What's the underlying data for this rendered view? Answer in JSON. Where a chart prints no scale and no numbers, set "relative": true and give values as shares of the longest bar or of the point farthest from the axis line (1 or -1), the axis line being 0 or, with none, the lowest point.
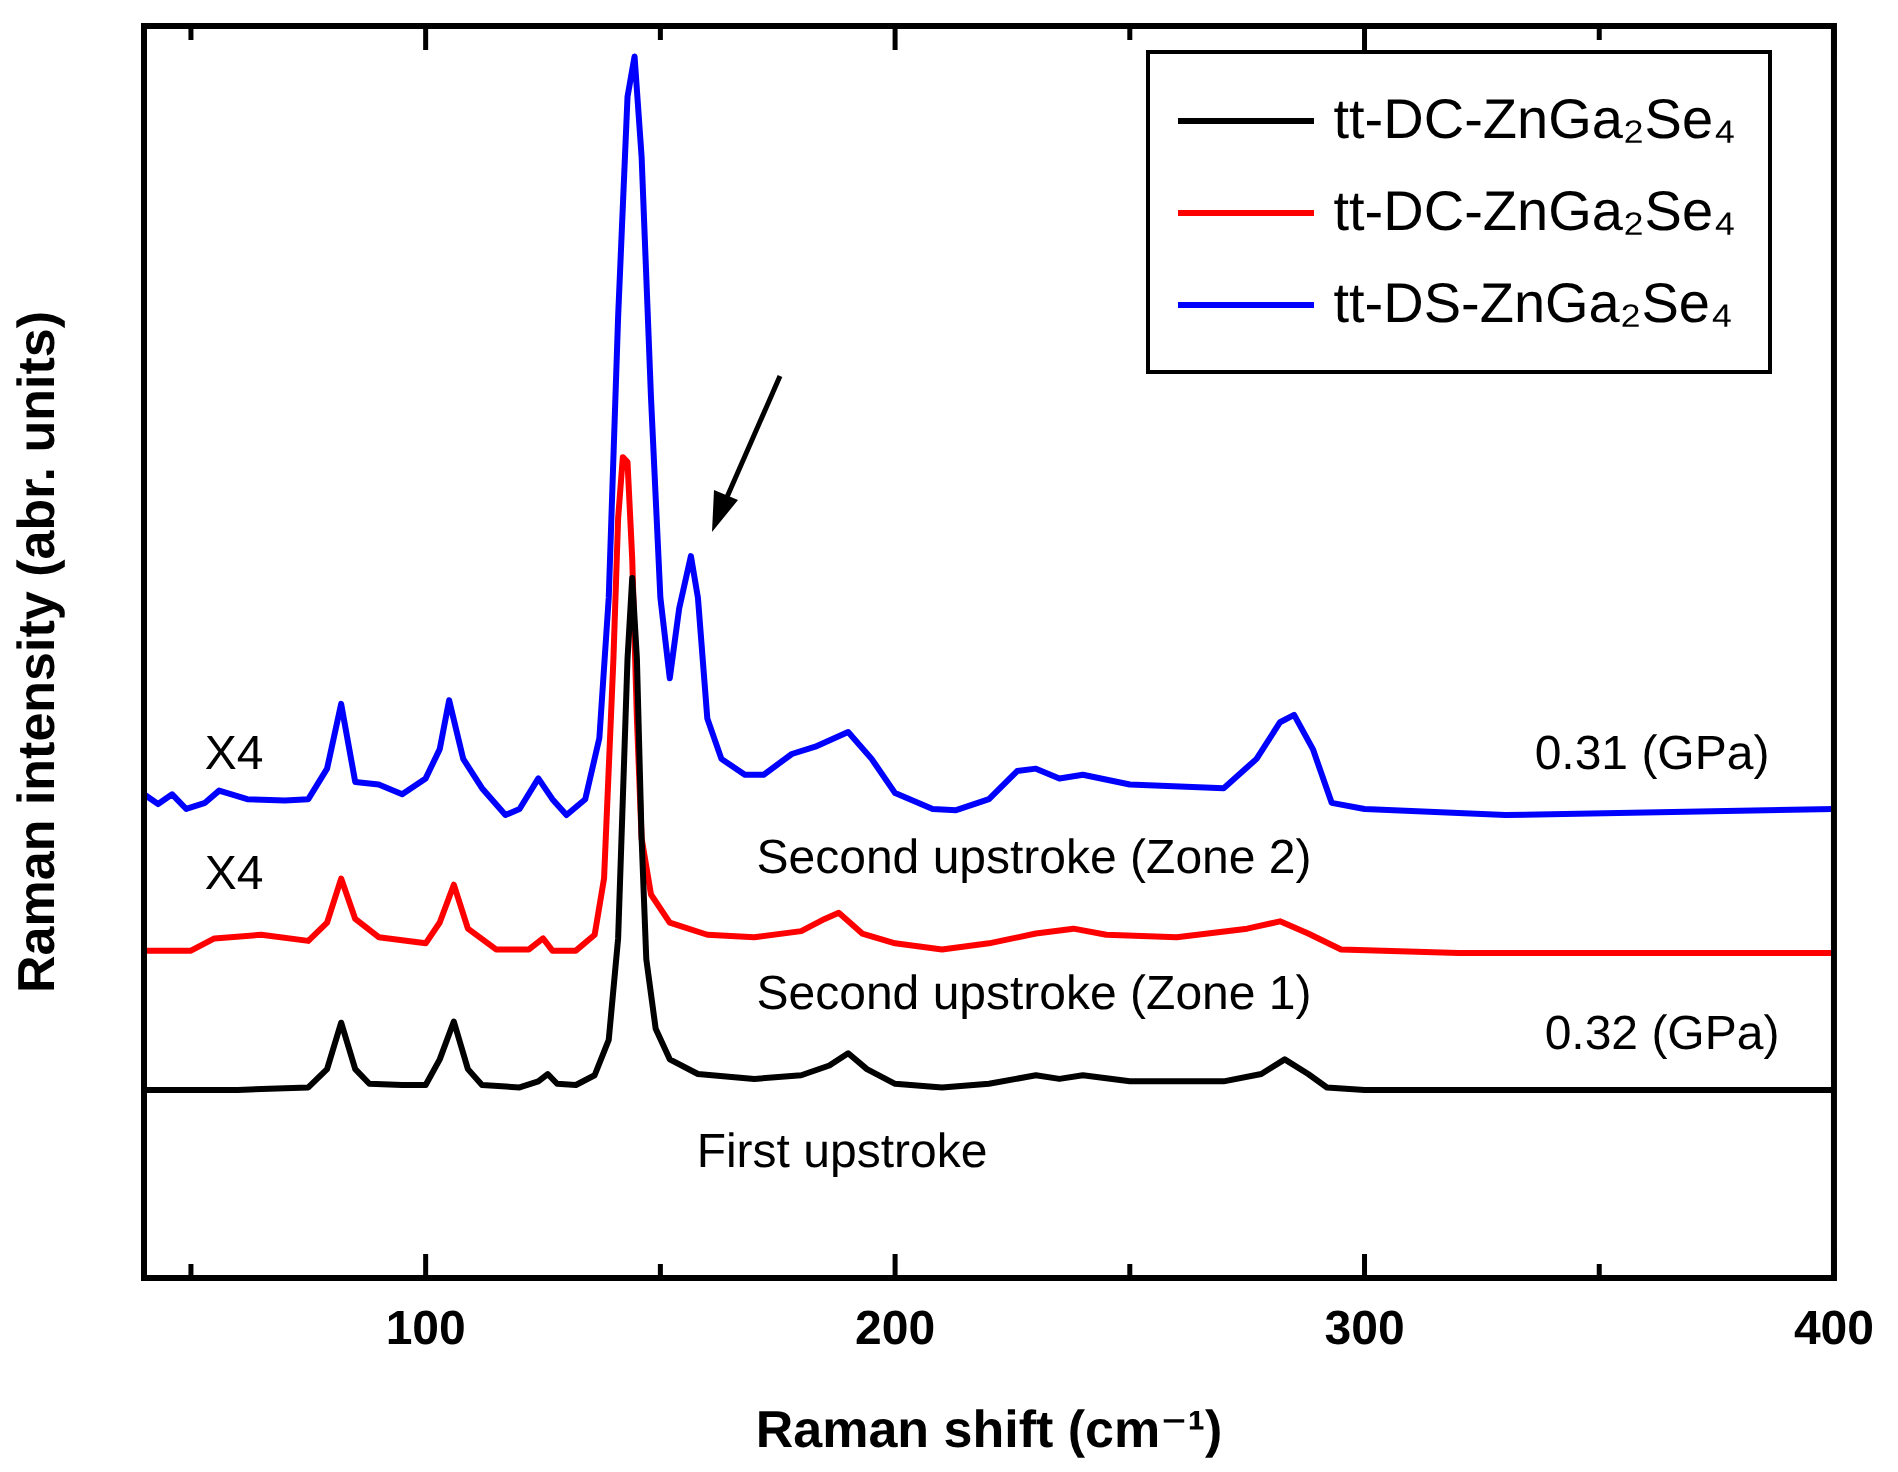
{
  "chart_data": {
    "type": "line",
    "xlabel": "Raman shift (cm⁻¹)",
    "ylabel": "Raman intensity (abr. units)",
    "relative": true,
    "xlim": [
      40,
      400
    ],
    "xticks": [
      {
        "value": 50,
        "label": null
      },
      100,
      {
        "value": 150,
        "label": null
      },
      200,
      {
        "value": 250,
        "label": null
      },
      300,
      {
        "value": 350,
        "label": null
      },
      400
    ],
    "grid": false,
    "legend": "top right",
    "marker": "none",
    "line_style": "solid",
    "series": [
      {
        "name": "tt-DC-ZnGa₂Se₄",
        "color": "#000000",
        "x": [
          40,
          60,
          75,
          79,
          82,
          85,
          88,
          95,
          100,
          103,
          106,
          109,
          112,
          120,
          124,
          126,
          128,
          132,
          136,
          139,
          141,
          142,
          143,
          144,
          145,
          146,
          147,
          149,
          152,
          158,
          170,
          180,
          186,
          190,
          194,
          200,
          210,
          220,
          230,
          235,
          240,
          250,
          270,
          278,
          283,
          288,
          292,
          300,
          400
        ],
        "values": [
          0.154,
          0.154,
          0.156,
          0.171,
          0.209,
          0.171,
          0.159,
          0.158,
          0.158,
          0.179,
          0.21,
          0.171,
          0.158,
          0.156,
          0.161,
          0.167,
          0.159,
          0.158,
          0.166,
          0.195,
          0.278,
          0.392,
          0.507,
          0.573,
          0.507,
          0.36,
          0.261,
          0.204,
          0.179,
          0.167,
          0.163,
          0.166,
          0.174,
          0.184,
          0.171,
          0.159,
          0.156,
          0.159,
          0.166,
          0.163,
          0.166,
          0.161,
          0.161,
          0.167,
          0.179,
          0.167,
          0.156,
          0.154,
          0.154
        ]
      },
      {
        "name": "tt-DC-ZnGa₂Se₄",
        "color": "#ff0000",
        "x": [
          40,
          50,
          55,
          65,
          75,
          79,
          82,
          85,
          90,
          100,
          103,
          106,
          109,
          115,
          122,
          125,
          127,
          132,
          136,
          138,
          140,
          141,
          142,
          143,
          144,
          145,
          146,
          148,
          152,
          160,
          170,
          180,
          185,
          188,
          193,
          200,
          210,
          220,
          230,
          238,
          245,
          260,
          275,
          282,
          288,
          295,
          320,
          400
        ],
        "values": [
          0.268,
          0.268,
          0.278,
          0.281,
          0.276,
          0.291,
          0.327,
          0.294,
          0.279,
          0.274,
          0.291,
          0.322,
          0.286,
          0.269,
          0.269,
          0.278,
          0.268,
          0.268,
          0.281,
          0.327,
          0.507,
          0.622,
          0.672,
          0.668,
          0.589,
          0.458,
          0.36,
          0.314,
          0.291,
          0.281,
          0.279,
          0.284,
          0.294,
          0.299,
          0.282,
          0.274,
          0.269,
          0.274,
          0.282,
          0.286,
          0.281,
          0.279,
          0.286,
          0.292,
          0.282,
          0.269,
          0.266,
          0.266
        ]
      },
      {
        "name": "tt-DS-ZnGa₂Se₄",
        "color": "#0000ff",
        "x": [
          40,
          43,
          46,
          49,
          53,
          56,
          62,
          70,
          75,
          79,
          82,
          85,
          90,
          95,
          100,
          103,
          105,
          108,
          112,
          117,
          120,
          124,
          127,
          130,
          134,
          137,
          139,
          141,
          143,
          144.5,
          146,
          148,
          150,
          152,
          154,
          156.5,
          158,
          160,
          163,
          168,
          172,
          178,
          183,
          190,
          195,
          200,
          208,
          213,
          220,
          226,
          230,
          235,
          240,
          250,
          270,
          277,
          282,
          285,
          289,
          293,
          300,
          330,
          400
        ],
        "values": [
          0.396,
          0.388,
          0.396,
          0.384,
          0.389,
          0.399,
          0.392,
          0.391,
          0.392,
          0.417,
          0.47,
          0.406,
          0.404,
          0.396,
          0.409,
          0.433,
          0.473,
          0.425,
          0.401,
          0.379,
          0.384,
          0.409,
          0.392,
          0.379,
          0.392,
          0.442,
          0.557,
          0.787,
          0.967,
          1,
          0.918,
          0.721,
          0.557,
          0.491,
          0.548,
          0.591,
          0.557,
          0.458,
          0.425,
          0.412,
          0.412,
          0.429,
          0.435,
          0.447,
          0.425,
          0.397,
          0.384,
          0.383,
          0.392,
          0.415,
          0.417,
          0.409,
          0.412,
          0.404,
          0.401,
          0.425,
          0.455,
          0.461,
          0.433,
          0.389,
          0.384,
          0.379,
          0.384
        ]
      }
    ],
    "annotations": [
      "X4",
      "X4",
      "Second upstroke (Zone 2)",
      "Second upstroke (Zone 1)",
      "First upstroke",
      "0.31 (GPa)",
      "0.32 (GPa)"
    ]
  }
}
